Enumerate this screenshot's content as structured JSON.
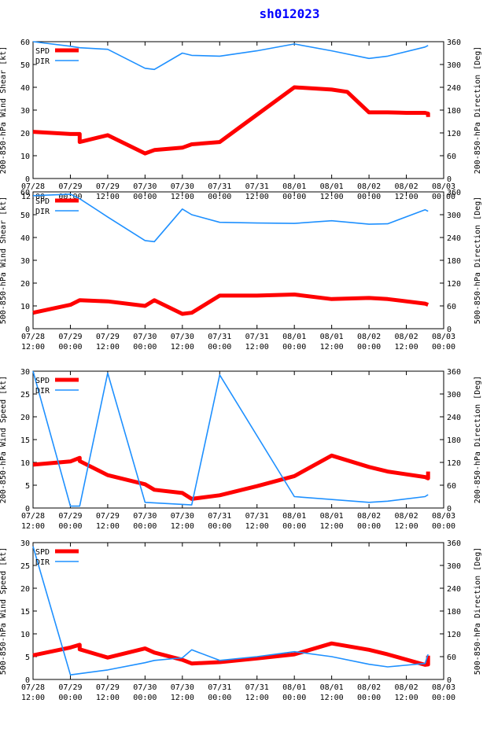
{
  "title": "sh012023",
  "x_ticks": [
    "07/28\n12:00",
    "07/29\n00:00",
    "07/29\n12:00",
    "07/30\n00:00",
    "07/30\n12:00",
    "07/31\n00:00",
    "07/31\n12:00",
    "08/01\n00:00",
    "08/01\n12:00",
    "08/02\n00:00",
    "08/02\n12:00",
    "08/03\n00:00"
  ],
  "colors": {
    "speed": "#ff0000",
    "direction": "#1e90ff",
    "title": "#0000ff"
  },
  "chart_data": [
    {
      "type": "line",
      "ylabel_left": "200-850-hPa Wind Shear [kt]",
      "ylabel_right": "200-850-hPa Direction [Deg]",
      "ylim_left": [
        0,
        60
      ],
      "yticks_left": [
        0,
        10,
        20,
        30,
        40,
        50,
        60
      ],
      "ylim_right": [
        0,
        360
      ],
      "yticks_right": [
        0,
        60,
        120,
        180,
        240,
        300,
        360
      ],
      "xlim_hours": [
        0,
        132
      ],
      "legend": "top-left",
      "series": [
        {
          "name": "SPD",
          "axis": "left",
          "color": "#ff0000",
          "x_hours": [
            0,
            12,
            15,
            15,
            24,
            36,
            39,
            48,
            51,
            60,
            66,
            72,
            84,
            96,
            101,
            108,
            114,
            120,
            126,
            127,
            127
          ],
          "values": [
            20.5,
            19.5,
            19.5,
            16,
            19,
            11,
            12.5,
            13.5,
            15,
            16,
            22,
            28,
            40,
            39,
            38,
            29,
            29,
            28.8,
            28.8,
            28.5,
            27
          ]
        },
        {
          "name": "DIR",
          "axis": "right",
          "color": "#1e90ff",
          "x_hours": [
            0,
            12,
            15,
            24,
            36,
            39,
            48,
            51,
            60,
            72,
            84,
            96,
            108,
            114,
            126,
            127
          ],
          "values": [
            360,
            348,
            344,
            340,
            290,
            287,
            330,
            324,
            322,
            336,
            354,
            336,
            316,
            322,
            346,
            350
          ]
        }
      ]
    },
    {
      "type": "line",
      "ylabel_left": "500-850-hPa Wind Shear [kt]",
      "ylabel_right": "500-850-hPa Direction [Deg]",
      "ylim_left": [
        0,
        60
      ],
      "yticks_left": [
        0,
        10,
        20,
        30,
        40,
        50,
        60
      ],
      "ylim_right": [
        0,
        360
      ],
      "yticks_right": [
        0,
        60,
        120,
        180,
        240,
        300,
        360
      ],
      "xlim_hours": [
        0,
        132
      ],
      "legend": "top-left",
      "series": [
        {
          "name": "SPD",
          "axis": "left",
          "color": "#ff0000",
          "x_hours": [
            0,
            12,
            15,
            24,
            36,
            39,
            48,
            51,
            60,
            72,
            84,
            96,
            108,
            114,
            126,
            127
          ],
          "values": [
            7,
            10.5,
            12.5,
            12,
            10,
            12.5,
            6.5,
            7,
            14.5,
            14.5,
            15,
            13,
            13.5,
            13,
            11,
            10.5
          ]
        },
        {
          "name": "DIR",
          "axis": "right",
          "color": "#1e90ff",
          "x_hours": [
            0,
            12,
            15,
            24,
            36,
            39,
            48,
            51,
            60,
            72,
            84,
            96,
            108,
            114,
            126,
            127
          ],
          "values": [
            350,
            354,
            342,
            294,
            232,
            229,
            315,
            300,
            280,
            278,
            277,
            284,
            275,
            276,
            313,
            309
          ]
        }
      ]
    },
    {
      "type": "line",
      "ylabel_left": "200-850-hPa Wind Speed [kt]",
      "ylabel_right": "200-850-hPa Direction [Deg]",
      "ylim_left": [
        0,
        30
      ],
      "yticks_left": [
        0,
        5,
        10,
        15,
        20,
        25,
        30
      ],
      "ylim_right": [
        0,
        360
      ],
      "yticks_right": [
        0,
        60,
        120,
        180,
        240,
        300,
        360
      ],
      "xlim_hours": [
        0,
        132
      ],
      "legend": "top-left",
      "series": [
        {
          "name": "SPD",
          "axis": "left",
          "color": "#ff0000",
          "x_hours": [
            0,
            12,
            15,
            15,
            24,
            36,
            39,
            48,
            51,
            60,
            72,
            84,
            96,
            108,
            114,
            126,
            127,
            127
          ],
          "values": [
            9.5,
            10.2,
            11,
            10.3,
            7.2,
            5.2,
            4,
            3.3,
            2,
            2.8,
            4.8,
            7,
            11.5,
            9,
            8,
            6.8,
            6.5,
            8
          ]
        },
        {
          "name": "DIR",
          "axis": "right",
          "color": "#1e90ff",
          "x_hours": [
            0,
            12,
            15,
            24,
            36,
            51,
            60,
            84,
            108,
            114,
            126,
            127
          ],
          "values": [
            360,
            5,
            5,
            355,
            15,
            8,
            350,
            30,
            15,
            18,
            30,
            35
          ]
        }
      ]
    },
    {
      "type": "line",
      "ylabel_left": "500-850-hPa Wind Speed [kt]",
      "ylabel_right": "500-850-hPa Direction [Deg]",
      "ylim_left": [
        0,
        30
      ],
      "yticks_left": [
        0,
        5,
        10,
        15,
        20,
        25,
        30
      ],
      "ylim_right": [
        0,
        360
      ],
      "yticks_right": [
        0,
        60,
        120,
        180,
        240,
        300,
        360
      ],
      "xlim_hours": [
        0,
        132
      ],
      "legend": "top-left",
      "series": [
        {
          "name": "SPD",
          "axis": "left",
          "color": "#ff0000",
          "x_hours": [
            0,
            12,
            15,
            15,
            24,
            36,
            39,
            48,
            51,
            60,
            72,
            84,
            96,
            108,
            114,
            126,
            127,
            127
          ],
          "values": [
            5.3,
            7,
            7.6,
            6.6,
            4.8,
            6.8,
            5.9,
            4.3,
            3.5,
            3.8,
            4.6,
            5.5,
            7.9,
            6.5,
            5.5,
            3.2,
            3.3,
            5.2
          ]
        },
        {
          "name": "DIR",
          "axis": "right",
          "color": "#1e90ff",
          "x_hours": [
            0,
            12,
            24,
            36,
            39,
            48,
            51,
            60,
            72,
            84,
            96,
            108,
            114,
            126,
            127
          ],
          "values": [
            350,
            12,
            25,
            44,
            50,
            57,
            78,
            50,
            60,
            73,
            60,
            40,
            33,
            42,
            66
          ]
        }
      ]
    }
  ]
}
